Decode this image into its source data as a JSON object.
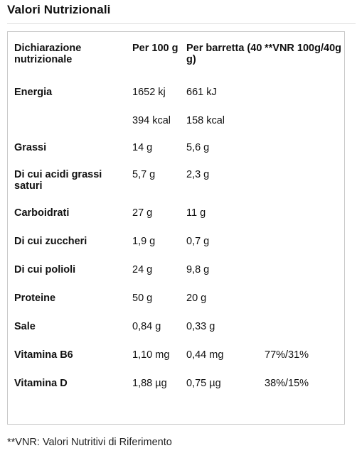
{
  "title": "Valori Nutrizionali",
  "table": {
    "headers": [
      "Dichiarazione nutrizionale",
      "Per 100 g",
      "Per barretta (40 g)",
      "**VNR 100g/40g"
    ],
    "rows": [
      {
        "name": "Energia",
        "per100": "1652 kj",
        "perBar": "661 kJ",
        "vnr": ""
      },
      {
        "name": "",
        "per100": "394 kcal",
        "perBar": "158 kcal",
        "vnr": ""
      },
      {
        "name": "Grassi",
        "per100": "14 g",
        "perBar": "5,6 g",
        "vnr": ""
      },
      {
        "name": "Di cui acidi grassi saturi",
        "per100": "5,7 g",
        "perBar": "2,3 g",
        "vnr": ""
      },
      {
        "name": "Carboidrati",
        "per100": "27 g",
        "perBar": "11 g",
        "vnr": ""
      },
      {
        "name": "Di cui zuccheri",
        "per100": "1,9 g",
        "perBar": "0,7 g",
        "vnr": ""
      },
      {
        "name": "Di cui polioli",
        "per100": "24 g",
        "perBar": "9,8 g",
        "vnr": ""
      },
      {
        "name": "Proteine",
        "per100": "50 g",
        "perBar": "20 g",
        "vnr": ""
      },
      {
        "name": "Sale",
        "per100": "0,84 g",
        "perBar": "0,33 g",
        "vnr": ""
      },
      {
        "name": "Vitamina B6",
        "per100": "1,10 mg",
        "perBar": "0,44 mg",
        "vnr": "77%/31%"
      },
      {
        "name": "Vitamina D",
        "per100": "1,88 µg",
        "perBar": "0,75 µg",
        "vnr": "38%/15%"
      }
    ]
  },
  "footnote": "**VNR: Valori Nutritivi di Riferimento"
}
